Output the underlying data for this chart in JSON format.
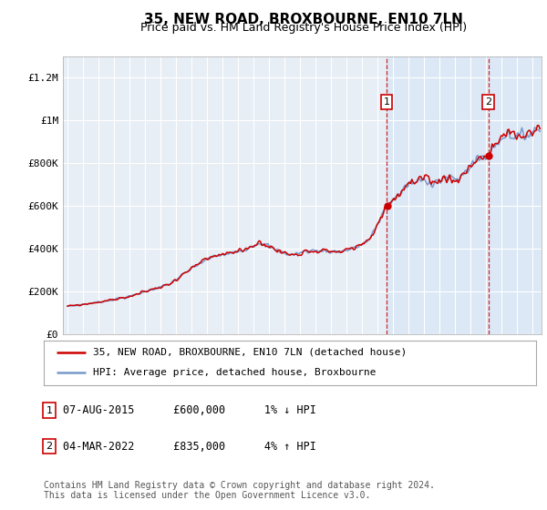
{
  "title": "35, NEW ROAD, BROXBOURNE, EN10 7LN",
  "subtitle": "Price paid vs. HM Land Registry's House Price Index (HPI)",
  "title_fontsize": 11,
  "subtitle_fontsize": 9,
  "ylabel_ticks": [
    "£0",
    "£200K",
    "£400K",
    "£600K",
    "£800K",
    "£1M",
    "£1.2M"
  ],
  "ytick_values": [
    0,
    200000,
    400000,
    600000,
    800000,
    1000000,
    1200000
  ],
  "ylim": [
    0,
    1300000
  ],
  "x_start_year": 1995,
  "x_end_year": 2025,
  "hpi_color": "#7799cc",
  "price_color": "#cc0000",
  "background_plot": "#e8eef5",
  "background_highlight": "#dce8f5",
  "grid_color": "#ffffff",
  "transaction1_year": 2015.6,
  "transaction1_price": 600000,
  "transaction2_year": 2022.17,
  "transaction2_price": 835000,
  "legend_label1": "35, NEW ROAD, BROXBOURNE, EN10 7LN (detached house)",
  "legend_label2": "HPI: Average price, detached house, Broxbourne",
  "annotation1_label": "1",
  "annotation1_text": "07-AUG-2015      £600,000      1% ↓ HPI",
  "annotation2_label": "2",
  "annotation2_text": "04-MAR-2022      £835,000      4% ↑ HPI",
  "footer": "Contains HM Land Registry data © Crown copyright and database right 2024.\nThis data is licensed under the Open Government Licence v3.0.",
  "footer_fontsize": 7
}
